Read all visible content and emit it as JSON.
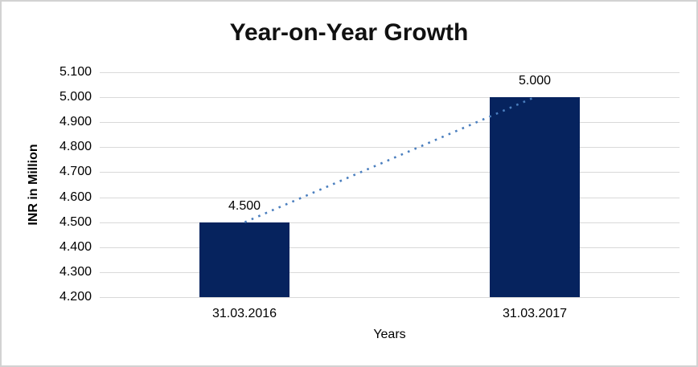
{
  "chart_data": {
    "type": "bar",
    "title": "Year-on-Year Growth",
    "xlabel": "Years",
    "ylabel": "INR in Million",
    "categories": [
      "31.03.2016",
      "31.03.2017"
    ],
    "values": [
      4.5,
      5.0
    ],
    "data_labels": [
      "4.500",
      "5.000"
    ],
    "ylim": [
      4.2,
      5.1
    ],
    "yticks": [
      {
        "value": 5.1,
        "label": "5.100"
      },
      {
        "value": 5.0,
        "label": "5.000"
      },
      {
        "value": 4.9,
        "label": "4.900"
      },
      {
        "value": 4.8,
        "label": "4.800"
      },
      {
        "value": 4.7,
        "label": "4.700"
      },
      {
        "value": 4.6,
        "label": "4.600"
      },
      {
        "value": 4.5,
        "label": "4.500"
      },
      {
        "value": 4.4,
        "label": "4.400"
      },
      {
        "value": 4.3,
        "label": "4.300"
      },
      {
        "value": 4.2,
        "label": "4.200"
      }
    ],
    "grid": true,
    "legend": "none",
    "series": [
      {
        "name": "bars",
        "type": "bar",
        "values": [
          4.5,
          5.0
        ]
      },
      {
        "name": "trendline",
        "type": "line",
        "style": "dotted",
        "values": [
          4.5,
          5.0
        ]
      }
    ],
    "colors": {
      "bar": "#06235e",
      "trendline": "#4a7ebe",
      "gridline": "#d9d9d9",
      "text": "#000000",
      "frame_border": "#d2d2d2",
      "background": "#ffffff"
    }
  }
}
